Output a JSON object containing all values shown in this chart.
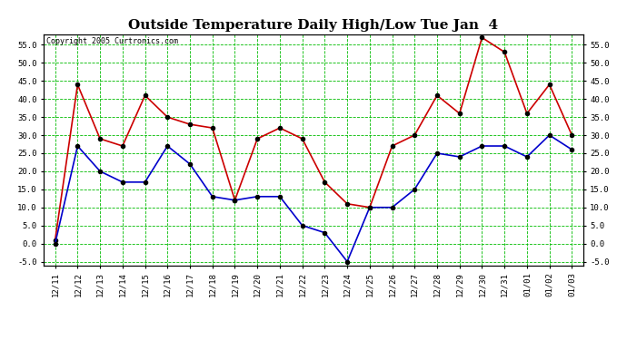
{
  "title": "Outside Temperature Daily High/Low Tue Jan  4",
  "copyright": "Copyright 2005 Curtronics.com",
  "dates": [
    "12/11",
    "12/12",
    "12/13",
    "12/14",
    "12/15",
    "12/16",
    "12/17",
    "12/18",
    "12/19",
    "12/20",
    "12/21",
    "12/22",
    "12/23",
    "12/24",
    "12/25",
    "12/26",
    "12/27",
    "12/28",
    "12/29",
    "12/30",
    "12/31",
    "01/01",
    "01/02",
    "01/03"
  ],
  "high": [
    1,
    44,
    29,
    27,
    41,
    35,
    33,
    32,
    12,
    29,
    32,
    29,
    17,
    11,
    10,
    27,
    30,
    41,
    36,
    57,
    53,
    36,
    44,
    30
  ],
  "low": [
    0,
    27,
    20,
    17,
    17,
    27,
    22,
    13,
    12,
    13,
    13,
    5,
    3,
    -5,
    10,
    10,
    15,
    25,
    24,
    27,
    27,
    24,
    30,
    26
  ],
  "high_color": "#cc0000",
  "low_color": "#0000cc",
  "bg_color": "#ffffff",
  "grid_color": "#00bb00",
  "ylim_min": -6,
  "ylim_max": 58,
  "yticks": [
    -5,
    0,
    5,
    10,
    15,
    20,
    25,
    30,
    35,
    40,
    45,
    50,
    55
  ],
  "marker": "o",
  "marker_color": "#000000",
  "marker_size": 3,
  "line_width": 1.2,
  "title_fontsize": 11,
  "tick_fontsize": 6.5,
  "copyright_fontsize": 6
}
